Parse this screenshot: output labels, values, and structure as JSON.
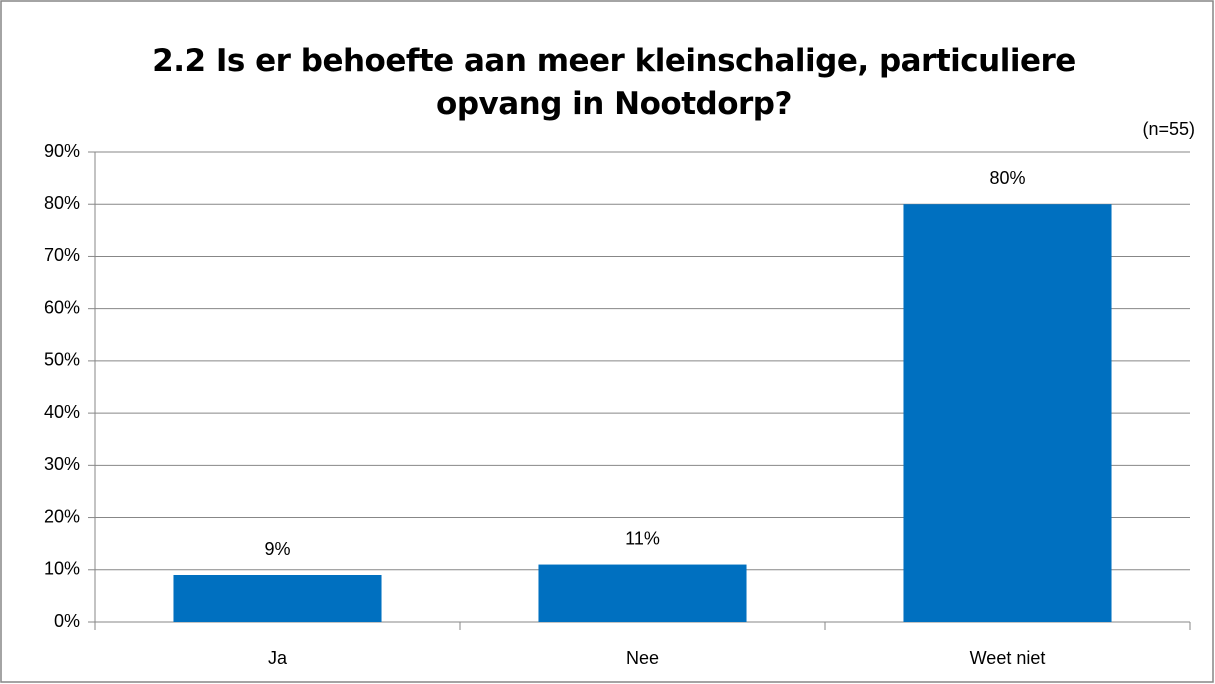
{
  "chart_data": {
    "type": "bar",
    "title": "2.2 Is er behoefte aan meer kleinschalige, particuliere opvang in Nootdorp?",
    "annotation": "(n=55)",
    "categories": [
      "Ja",
      "Nee",
      "Weet niet"
    ],
    "values": [
      9,
      11,
      80
    ],
    "value_labels": [
      "9%",
      "11%",
      "80%"
    ],
    "color": "#0070c0",
    "ylim": [
      0,
      90
    ],
    "yticks": [
      {
        "value": 0,
        "label": "0%"
      },
      {
        "value": 10,
        "label": "10%"
      },
      {
        "value": 20,
        "label": "20%"
      },
      {
        "value": 30,
        "label": "30%"
      },
      {
        "value": 40,
        "label": "40%"
      },
      {
        "value": 50,
        "label": "50%"
      },
      {
        "value": 60,
        "label": "60%"
      },
      {
        "value": 70,
        "label": "70%"
      },
      {
        "value": 80,
        "label": "80%"
      },
      {
        "value": 90,
        "label": "90%"
      }
    ],
    "grid": true
  }
}
